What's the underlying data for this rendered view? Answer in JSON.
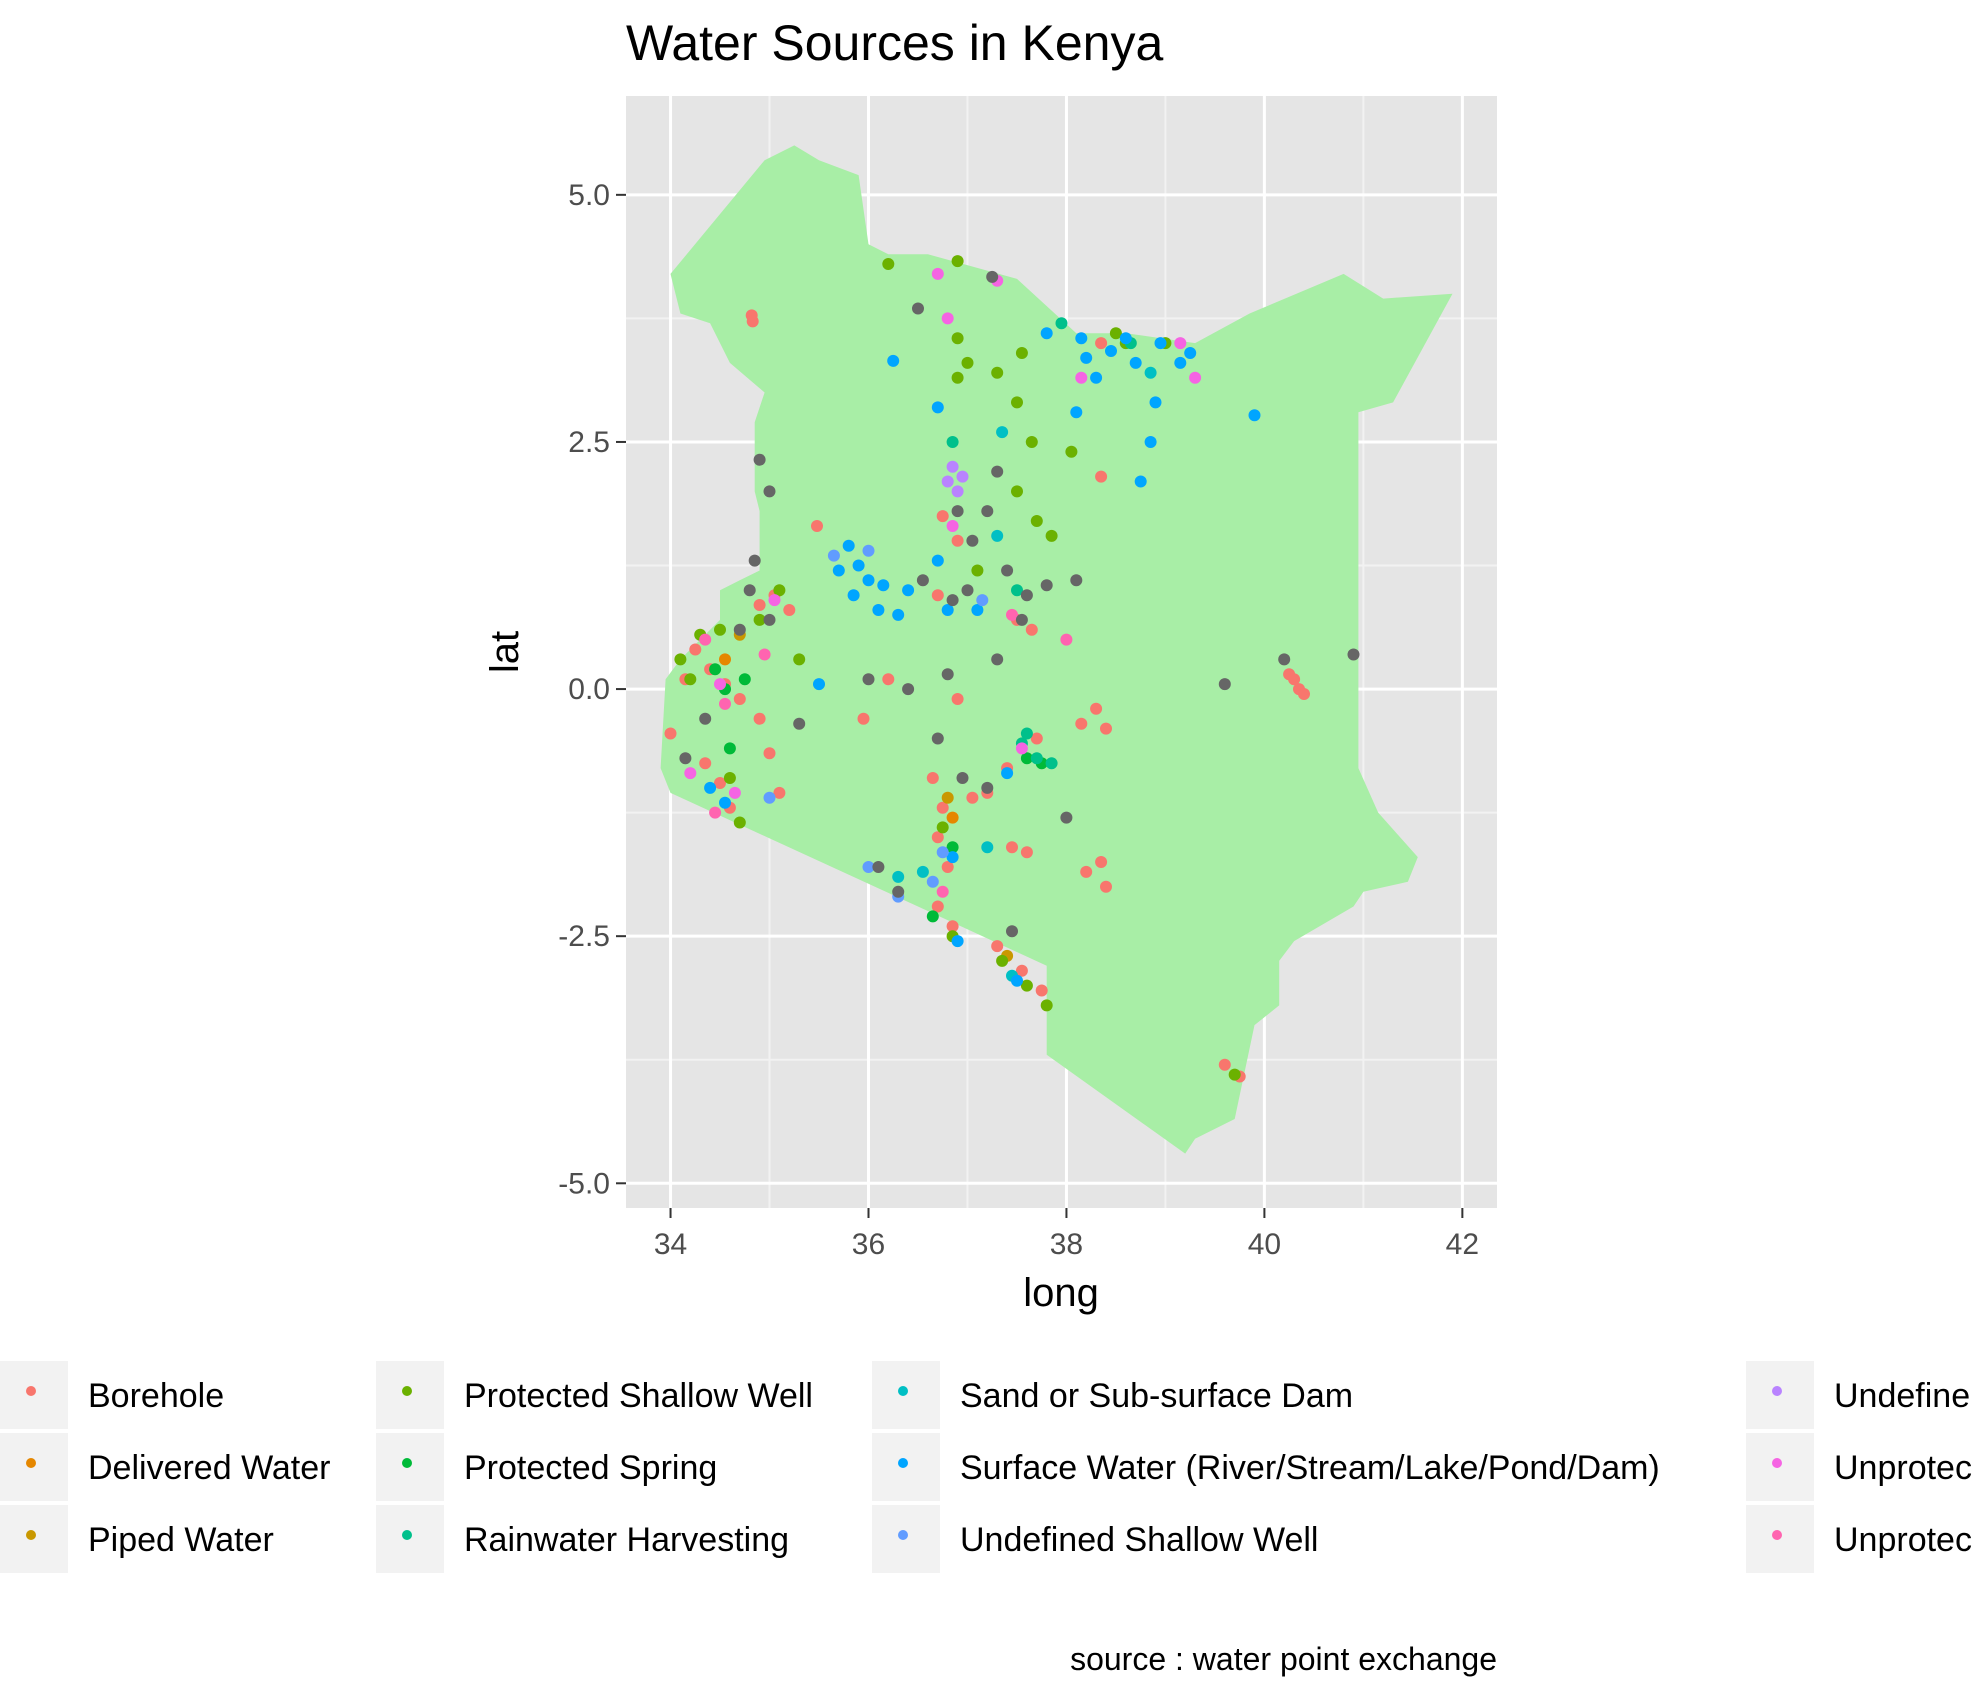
{
  "chart_data": {
    "type": "scatter",
    "title": "Water Sources in Kenya",
    "xlabel": "long",
    "ylabel": "lat",
    "caption": "source : water point exchange",
    "xlim": [
      33.55,
      42.35
    ],
    "ylim": [
      -5.25,
      6.0
    ],
    "x_ticks": [
      {
        "value": 34,
        "label": "34"
      },
      {
        "value": 36,
        "label": "36"
      },
      {
        "value": 38,
        "label": "38"
      },
      {
        "value": 40,
        "label": "40"
      },
      {
        "value": 42,
        "label": "42"
      }
    ],
    "y_ticks": [
      {
        "value": 5,
        "label": "5.0"
      },
      {
        "value": 2.5,
        "label": "2.5"
      },
      {
        "value": 0,
        "label": "0.0"
      },
      {
        "value": -2.5,
        "label": "-2.5"
      },
      {
        "value": -5,
        "label": "-5.0"
      }
    ],
    "grid": true,
    "legend_position": "bottom",
    "country_fill": "#a8eea6",
    "panel_background": "#e5e5e5",
    "country_outline": [
      [
        34.0,
        4.2
      ],
      [
        34.95,
        5.35
      ],
      [
        35.25,
        5.5
      ],
      [
        35.5,
        5.35
      ],
      [
        35.9,
        5.2
      ],
      [
        36.0,
        4.5
      ],
      [
        36.2,
        4.4
      ],
      [
        36.6,
        4.4
      ],
      [
        37.5,
        4.15
      ],
      [
        38.1,
        3.6
      ],
      [
        38.6,
        3.6
      ],
      [
        39.3,
        3.5
      ],
      [
        39.85,
        3.8
      ],
      [
        40.8,
        4.2
      ],
      [
        41.2,
        3.95
      ],
      [
        41.9,
        4.0
      ],
      [
        41.3,
        2.9
      ],
      [
        40.95,
        2.8
      ],
      [
        40.95,
        -0.8
      ],
      [
        41.15,
        -1.25
      ],
      [
        41.55,
        -1.7
      ],
      [
        41.45,
        -1.95
      ],
      [
        41.0,
        -2.05
      ],
      [
        40.9,
        -2.2
      ],
      [
        40.3,
        -2.55
      ],
      [
        40.15,
        -2.75
      ],
      [
        40.15,
        -3.2
      ],
      [
        39.9,
        -3.4
      ],
      [
        39.7,
        -4.35
      ],
      [
        39.3,
        -4.55
      ],
      [
        39.2,
        -4.7
      ],
      [
        37.8,
        -3.7
      ],
      [
        37.8,
        -2.8
      ],
      [
        36.5,
        -2.2
      ],
      [
        34.0,
        -1.05
      ],
      [
        33.9,
        -0.8
      ],
      [
        33.95,
        0.1
      ],
      [
        34.1,
        0.3
      ],
      [
        34.5,
        0.7
      ],
      [
        34.5,
        1.0
      ],
      [
        34.7,
        1.1
      ],
      [
        34.9,
        1.2
      ],
      [
        34.9,
        1.8
      ],
      [
        34.85,
        2.0
      ],
      [
        34.85,
        2.7
      ],
      [
        34.95,
        3.0
      ],
      [
        34.6,
        3.3
      ],
      [
        34.4,
        3.7
      ],
      [
        34.1,
        3.8
      ]
    ],
    "series": [
      {
        "name": "Borehole",
        "color": "#f8766d",
        "points": [
          [
            34.82,
            3.78
          ],
          [
            34.83,
            3.72
          ],
          [
            38.35,
            3.5
          ],
          [
            38.35,
            2.15
          ],
          [
            35.48,
            1.65
          ],
          [
            34.9,
            0.85
          ],
          [
            35.05,
            0.95
          ],
          [
            35.2,
            0.8
          ],
          [
            34.25,
            0.4
          ],
          [
            34.4,
            0.2
          ],
          [
            34.55,
            0.05
          ],
          [
            34.7,
            -0.1
          ],
          [
            34.9,
            -0.3
          ],
          [
            34.35,
            -0.75
          ],
          [
            34.5,
            -0.95
          ],
          [
            34.6,
            -1.2
          ],
          [
            35.0,
            -0.65
          ],
          [
            35.1,
            -1.05
          ],
          [
            36.2,
            0.1
          ],
          [
            35.95,
            -0.3
          ],
          [
            36.65,
            -0.9
          ],
          [
            36.75,
            -1.2
          ],
          [
            36.7,
            -1.5
          ],
          [
            36.8,
            -1.8
          ],
          [
            36.7,
            -2.2
          ],
          [
            36.85,
            -2.4
          ],
          [
            37.05,
            -1.1
          ],
          [
            37.2,
            -1.05
          ],
          [
            37.45,
            -1.6
          ],
          [
            37.6,
            -1.65
          ],
          [
            37.4,
            -0.8
          ],
          [
            37.7,
            -0.5
          ],
          [
            38.3,
            -0.2
          ],
          [
            38.15,
            -0.35
          ],
          [
            38.4,
            -0.4
          ],
          [
            38.2,
            -1.85
          ],
          [
            38.35,
            -1.75
          ],
          [
            38.4,
            -2.0
          ],
          [
            37.3,
            -2.6
          ],
          [
            37.55,
            -2.85
          ],
          [
            37.75,
            -3.05
          ],
          [
            40.25,
            0.15
          ],
          [
            40.3,
            0.1
          ],
          [
            40.35,
            0.0
          ],
          [
            40.4,
            -0.05
          ],
          [
            39.6,
            -3.8
          ],
          [
            39.75,
            -3.92
          ],
          [
            37.5,
            0.7
          ],
          [
            37.65,
            0.6
          ],
          [
            36.75,
            1.75
          ],
          [
            36.9,
            1.5
          ],
          [
            36.7,
            0.95
          ],
          [
            34.0,
            -0.45
          ],
          [
            34.15,
            0.1
          ],
          [
            36.9,
            -0.1
          ]
        ]
      },
      {
        "name": "Delivered Water",
        "color": "#e58700",
        "points": [
          [
            34.55,
            0.3
          ],
          [
            36.85,
            -1.3
          ]
        ]
      },
      {
        "name": "Piped Water",
        "color": "#c99800",
        "points": [
          [
            34.7,
            0.55
          ],
          [
            36.8,
            -1.1
          ],
          [
            37.4,
            -2.7
          ]
        ]
      },
      {
        "name": "Protected Shallow Well",
        "color": "#6bb100",
        "points": [
          [
            36.2,
            4.3
          ],
          [
            36.9,
            4.33
          ],
          [
            36.9,
            3.15
          ],
          [
            37.0,
            3.3
          ],
          [
            37.3,
            3.2
          ],
          [
            37.55,
            3.4
          ],
          [
            38.5,
            3.6
          ],
          [
            39.0,
            3.5
          ],
          [
            38.6,
            3.5
          ],
          [
            37.5,
            2.9
          ],
          [
            37.65,
            2.5
          ],
          [
            38.05,
            2.4
          ],
          [
            37.7,
            1.7
          ],
          [
            37.85,
            1.55
          ],
          [
            37.5,
            2.0
          ],
          [
            34.3,
            0.55
          ],
          [
            34.1,
            0.3
          ],
          [
            34.5,
            0.6
          ],
          [
            34.2,
            0.1
          ],
          [
            34.9,
            0.7
          ],
          [
            35.1,
            1.0
          ],
          [
            35.3,
            0.3
          ],
          [
            34.6,
            -0.9
          ],
          [
            34.7,
            -1.35
          ],
          [
            36.75,
            -1.4
          ],
          [
            36.85,
            -2.5
          ],
          [
            37.35,
            -2.75
          ],
          [
            37.6,
            -3.0
          ],
          [
            37.8,
            -3.2
          ],
          [
            39.7,
            -3.9
          ],
          [
            37.1,
            1.2
          ],
          [
            36.9,
            3.55
          ]
        ]
      },
      {
        "name": "Protected Spring",
        "color": "#00ba38",
        "points": [
          [
            34.45,
            0.2
          ],
          [
            34.75,
            0.1
          ],
          [
            34.55,
            0.0
          ],
          [
            34.6,
            -0.6
          ],
          [
            37.6,
            -0.7
          ],
          [
            37.75,
            -0.75
          ],
          [
            36.85,
            -1.6
          ],
          [
            36.65,
            -2.3
          ]
        ]
      },
      {
        "name": "Rainwater Harvesting",
        "color": "#00c08b",
        "points": [
          [
            37.95,
            3.7
          ],
          [
            37.55,
            -0.55
          ],
          [
            37.7,
            -0.7
          ],
          [
            37.85,
            -0.75
          ],
          [
            37.6,
            -0.45
          ],
          [
            36.85,
            2.5
          ],
          [
            37.5,
            1.0
          ],
          [
            38.65,
            3.5
          ]
        ]
      },
      {
        "name": "Sand or Sub-surface Dam",
        "color": "#00bfc4",
        "points": [
          [
            37.35,
            2.6
          ],
          [
            37.45,
            -2.9
          ],
          [
            37.2,
            -1.6
          ],
          [
            36.3,
            -1.9
          ],
          [
            36.55,
            -1.85
          ],
          [
            37.3,
            1.55
          ],
          [
            38.85,
            3.2
          ]
        ]
      },
      {
        "name": "Surface Water (River/Stream/Lake/Pond/Dam)",
        "color": "#00a5ff",
        "points": [
          [
            36.25,
            3.32
          ],
          [
            37.8,
            3.6
          ],
          [
            38.15,
            3.55
          ],
          [
            38.45,
            3.42
          ],
          [
            38.7,
            3.3
          ],
          [
            38.6,
            3.55
          ],
          [
            38.95,
            3.5
          ],
          [
            39.25,
            3.4
          ],
          [
            39.15,
            3.3
          ],
          [
            39.9,
            2.77
          ],
          [
            38.1,
            2.8
          ],
          [
            38.3,
            3.15
          ],
          [
            38.9,
            2.9
          ],
          [
            38.85,
            2.5
          ],
          [
            38.75,
            2.1
          ],
          [
            36.7,
            2.85
          ],
          [
            35.8,
            1.45
          ],
          [
            35.9,
            1.25
          ],
          [
            36.0,
            1.1
          ],
          [
            35.7,
            1.2
          ],
          [
            35.85,
            0.95
          ],
          [
            36.1,
            0.8
          ],
          [
            36.3,
            0.75
          ],
          [
            36.15,
            1.05
          ],
          [
            36.4,
            1.0
          ],
          [
            36.8,
            0.8
          ],
          [
            37.4,
            -0.85
          ],
          [
            36.85,
            -1.7
          ],
          [
            36.9,
            -2.55
          ],
          [
            37.5,
            -2.95
          ],
          [
            34.4,
            -1.0
          ],
          [
            34.55,
            -1.15
          ],
          [
            36.7,
            1.3
          ],
          [
            37.1,
            0.8
          ],
          [
            35.5,
            0.05
          ],
          [
            38.2,
            3.35
          ]
        ]
      },
      {
        "name": "Undefined Shallow Well",
        "color": "#619cff",
        "points": [
          [
            35.0,
            -1.1
          ],
          [
            36.0,
            -1.8
          ],
          [
            36.3,
            -2.1
          ],
          [
            36.75,
            -1.65
          ],
          [
            36.65,
            -1.95
          ],
          [
            37.15,
            0.9
          ],
          [
            35.65,
            1.35
          ],
          [
            36.0,
            1.4
          ]
        ]
      },
      {
        "name": "Undefined",
        "color": "#b983ff",
        "points": [
          [
            36.85,
            2.25
          ],
          [
            36.95,
            2.15
          ],
          [
            36.9,
            2.0
          ],
          [
            36.8,
            2.1
          ]
        ]
      },
      {
        "name": "Unprotected",
        "color": "#f564e3",
        "points": [
          [
            36.7,
            4.2
          ],
          [
            37.3,
            4.13
          ],
          [
            36.8,
            3.75
          ],
          [
            38.15,
            3.15
          ],
          [
            39.3,
            3.15
          ],
          [
            39.15,
            3.5
          ],
          [
            34.5,
            0.05
          ],
          [
            35.05,
            0.9
          ],
          [
            34.2,
            -0.85
          ],
          [
            34.65,
            -1.05
          ],
          [
            37.55,
            -0.6
          ],
          [
            36.85,
            1.65
          ]
        ]
      },
      {
        "name": "Unprotected",
        "color": "#ff64b0",
        "points": [
          [
            34.35,
            0.5
          ],
          [
            34.55,
            -0.15
          ],
          [
            34.95,
            0.35
          ],
          [
            34.45,
            -1.25
          ],
          [
            36.75,
            -2.05
          ],
          [
            37.45,
            0.75
          ],
          [
            38.0,
            0.5
          ]
        ]
      },
      {
        "name": "",
        "color": "#666666",
        "points": [
          [
            37.25,
            4.17
          ],
          [
            36.5,
            3.85
          ],
          [
            34.9,
            2.32
          ],
          [
            35.0,
            2.0
          ],
          [
            34.85,
            1.3
          ],
          [
            34.8,
            1.0
          ],
          [
            34.7,
            0.6
          ],
          [
            35.0,
            0.7
          ],
          [
            35.3,
            -0.35
          ],
          [
            36.0,
            0.1
          ],
          [
            36.4,
            0.0
          ],
          [
            36.8,
            0.15
          ],
          [
            37.3,
            0.3
          ],
          [
            37.0,
            1.0
          ],
          [
            37.4,
            1.2
          ],
          [
            37.8,
            1.05
          ],
          [
            38.1,
            1.1
          ],
          [
            37.2,
            1.8
          ],
          [
            37.05,
            1.5
          ],
          [
            36.55,
            1.1
          ],
          [
            36.95,
            -0.9
          ],
          [
            37.2,
            -1.0
          ],
          [
            38.0,
            -1.3
          ],
          [
            36.7,
            -0.5
          ],
          [
            36.1,
            -1.8
          ],
          [
            36.3,
            -2.05
          ],
          [
            37.45,
            -2.45
          ],
          [
            39.6,
            0.05
          ],
          [
            40.2,
            0.3
          ],
          [
            40.9,
            0.35
          ],
          [
            34.15,
            -0.7
          ],
          [
            34.35,
            -0.3
          ],
          [
            37.55,
            0.7
          ],
          [
            37.6,
            0.95
          ],
          [
            36.85,
            0.9
          ],
          [
            36.9,
            1.8
          ],
          [
            37.3,
            2.2
          ]
        ]
      }
    ],
    "legend_columns": [
      [
        {
          "label": "Borehole",
          "color": "#f8766d"
        },
        {
          "label": "Delivered Water",
          "color": "#e58700"
        },
        {
          "label": "Piped Water",
          "color": "#c99800"
        }
      ],
      [
        {
          "label": "Protected Shallow Well",
          "color": "#6bb100"
        },
        {
          "label": "Protected Spring",
          "color": "#00ba38"
        },
        {
          "label": "Rainwater Harvesting",
          "color": "#00c08b"
        }
      ],
      [
        {
          "label": "Sand or Sub-surface Dam",
          "color": "#00bfc4"
        },
        {
          "label": "Surface Water (River/Stream/Lake/Pond/Dam)",
          "color": "#00a5ff"
        },
        {
          "label": "Undefined Shallow Well",
          "color": "#619cff"
        }
      ],
      [
        {
          "label": "Undefine",
          "color": "#b983ff"
        },
        {
          "label": "Unprotec",
          "color": "#f564e3"
        },
        {
          "label": "Unprotec",
          "color": "#ff64b0"
        }
      ]
    ]
  }
}
